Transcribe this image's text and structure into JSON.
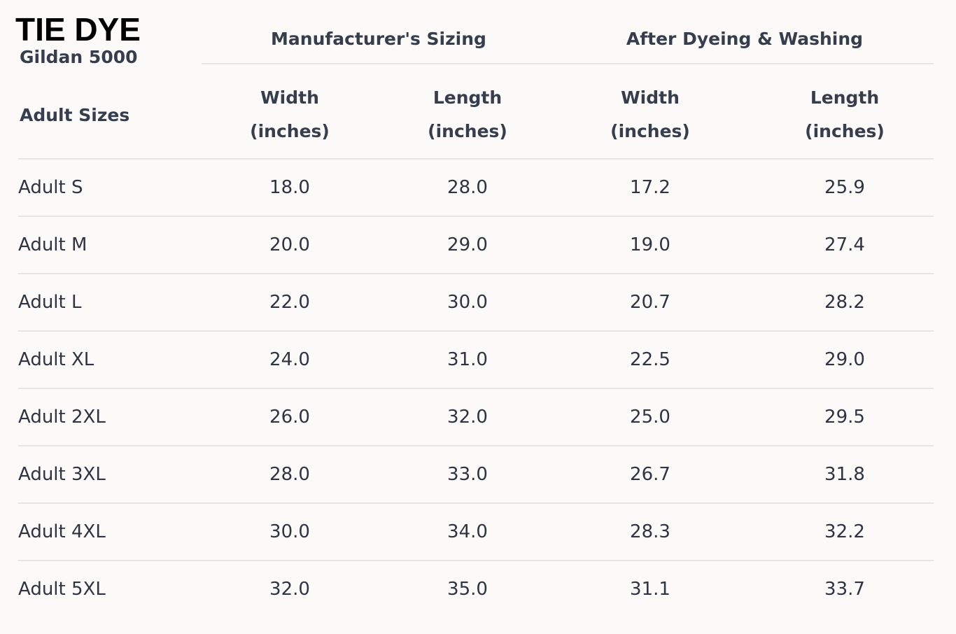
{
  "header": {
    "title": "TIE DYE",
    "subtitle": "Gildan 5000"
  },
  "table": {
    "group_headers": [
      "Manufacturer's Sizing",
      "After Dyeing & Washing"
    ],
    "first_column_header": "Adult Sizes",
    "columns": [
      {
        "name": "Width",
        "unit": "(inches)"
      },
      {
        "name": "Length",
        "unit": "(inches)"
      },
      {
        "name": "Width",
        "unit": "(inches)"
      },
      {
        "name": "Length",
        "unit": "(inches)"
      }
    ],
    "rows": [
      [
        "Adult S",
        "18.0",
        "28.0",
        "17.2",
        "25.9"
      ],
      [
        "Adult M",
        "20.0",
        "29.0",
        "19.0",
        "27.4"
      ],
      [
        "Adult L",
        "22.0",
        "30.0",
        "20.7",
        "28.2"
      ],
      [
        "Adult XL",
        "24.0",
        "31.0",
        "22.5",
        "29.0"
      ],
      [
        "Adult 2XL",
        "26.0",
        "32.0",
        "25.0",
        "29.5"
      ],
      [
        "Adult 3XL",
        "28.0",
        "33.0",
        "26.7",
        "31.8"
      ],
      [
        "Adult 4XL",
        "30.0",
        "34.0",
        "28.3",
        "32.2"
      ],
      [
        "Adult 5XL",
        "32.0",
        "35.0",
        "31.1",
        "33.7"
      ]
    ]
  }
}
